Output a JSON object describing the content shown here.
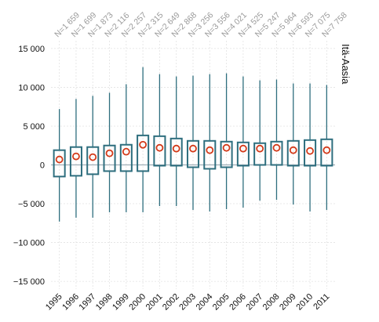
{
  "chart_data": {
    "type": "boxplot",
    "panel_label": "Itä-Aasia",
    "ylim": [
      -16000,
      16000
    ],
    "y_ticks": [
      {
        "value": -15000,
        "label": "−15 000"
      },
      {
        "value": -10000,
        "label": "−10 000"
      },
      {
        "value": -5000,
        "label": "−5 000"
      },
      {
        "value": 0,
        "label": "0"
      },
      {
        "value": 5000,
        "label": "5 000"
      },
      {
        "value": 10000,
        "label": "10 000"
      },
      {
        "value": 15000,
        "label": "15 000"
      }
    ],
    "grid": true,
    "box_color": "#2e6e7e",
    "marker_color": "#d23a1a",
    "zero_line_color": "#8ea0aa",
    "boxes": [
      {
        "year": "1995",
        "n": "N=1 659",
        "whisker_low": -7300,
        "q1": -1500,
        "q3": 1900,
        "whisker_high": 7200,
        "mean": 700
      },
      {
        "year": "1996",
        "n": "N=1 699",
        "whisker_low": -6800,
        "q1": -1400,
        "q3": 2300,
        "whisker_high": 8500,
        "mean": 1100
      },
      {
        "year": "1997",
        "n": "N=1 873",
        "whisker_low": -6800,
        "q1": -1200,
        "q3": 2300,
        "whisker_high": 8900,
        "mean": 1000
      },
      {
        "year": "1998",
        "n": "N=2 116",
        "whisker_low": -6100,
        "q1": -800,
        "q3": 2500,
        "whisker_high": 9300,
        "mean": 1500
      },
      {
        "year": "1999",
        "n": "N=2 257",
        "whisker_low": -6100,
        "q1": -800,
        "q3": 2600,
        "whisker_high": 10400,
        "mean": 1700
      },
      {
        "year": "2000",
        "n": "N=2 315",
        "whisker_low": -6100,
        "q1": -800,
        "q3": 3800,
        "whisker_high": 12600,
        "mean": 2600
      },
      {
        "year": "2001",
        "n": "N=2 649",
        "whisker_low": -5300,
        "q1": -100,
        "q3": 3700,
        "whisker_high": 11700,
        "mean": 2200
      },
      {
        "year": "2002",
        "n": "N=2 868",
        "whisker_low": -5300,
        "q1": -100,
        "q3": 3400,
        "whisker_high": 11400,
        "mean": 2100
      },
      {
        "year": "2003",
        "n": "N=3 256",
        "whisker_low": -5800,
        "q1": -300,
        "q3": 3100,
        "whisker_high": 11500,
        "mean": 2100
      },
      {
        "year": "2004",
        "n": "N=3 556",
        "whisker_low": -6000,
        "q1": -500,
        "q3": 3100,
        "whisker_high": 11700,
        "mean": 1900
      },
      {
        "year": "2005",
        "n": "N=4 021",
        "whisker_low": -5700,
        "q1": -300,
        "q3": 3000,
        "whisker_high": 11800,
        "mean": 2200
      },
      {
        "year": "2006",
        "n": "N=4 525",
        "whisker_low": -5500,
        "q1": -100,
        "q3": 2900,
        "whisker_high": 11400,
        "mean": 2100
      },
      {
        "year": "2007",
        "n": "N=5 247",
        "whisker_low": -4600,
        "q1": 0,
        "q3": 2800,
        "whisker_high": 10900,
        "mean": 2100
      },
      {
        "year": "2008",
        "n": "N=5 964",
        "whisker_low": -4500,
        "q1": 0,
        "q3": 3000,
        "whisker_high": 11000,
        "mean": 2200
      },
      {
        "year": "2009",
        "n": "N=6 593",
        "whisker_low": -5100,
        "q1": -100,
        "q3": 3100,
        "whisker_high": 10500,
        "mean": 1900
      },
      {
        "year": "2010",
        "n": "N=7 075",
        "whisker_low": -6000,
        "q1": -100,
        "q3": 3200,
        "whisker_high": 10500,
        "mean": 1800
      },
      {
        "year": "2011",
        "n": "N=7 758",
        "whisker_low": -5800,
        "q1": -100,
        "q3": 3300,
        "whisker_high": 10300,
        "mean": 1900
      }
    ]
  }
}
